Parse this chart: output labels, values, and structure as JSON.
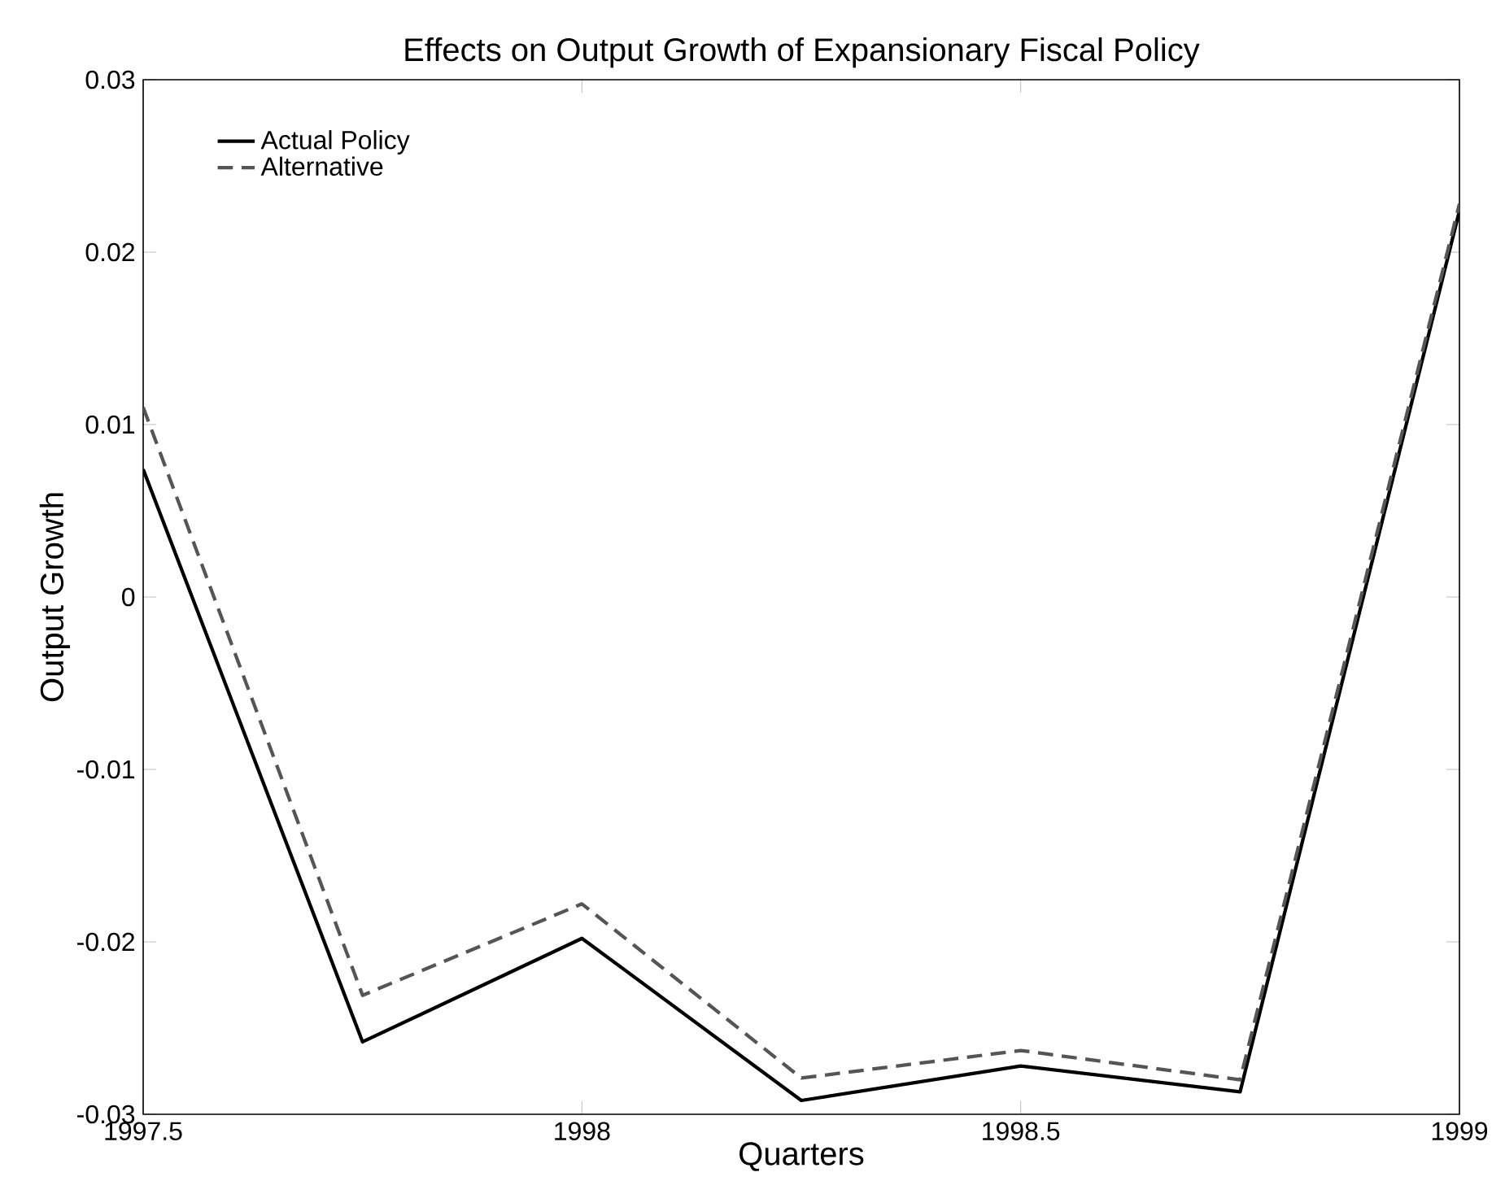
{
  "chart_data": {
    "type": "line",
    "title": "Effects on Output Growth of Expansionary Fiscal Policy",
    "xlabel": "Quarters",
    "ylabel": "Output Growth",
    "x": [
      1997.5,
      1997.75,
      1998,
      1998.25,
      1998.5,
      1998.75,
      1999
    ],
    "series": [
      {
        "name": "Actual Policy",
        "color": "#000000",
        "line_style": "solid",
        "values": [
          0.0074,
          -0.0258,
          -0.0198,
          -0.0292,
          -0.0272,
          -0.0287,
          0.0224
        ]
      },
      {
        "name": "Alternative",
        "color": "#555555",
        "line_style": "dashed",
        "values": [
          0.011,
          -0.0231,
          -0.0178,
          -0.0279,
          -0.0263,
          -0.028,
          0.0228
        ]
      }
    ],
    "xlim": [
      1997.5,
      1999
    ],
    "xticks": [
      1997.5,
      1998,
      1998.5,
      1999
    ],
    "ylim": [
      -0.03,
      0.03
    ],
    "yticks": [
      -0.03,
      -0.02,
      -0.01,
      0,
      0.01,
      0.02,
      0.03
    ],
    "legend": "top left"
  }
}
